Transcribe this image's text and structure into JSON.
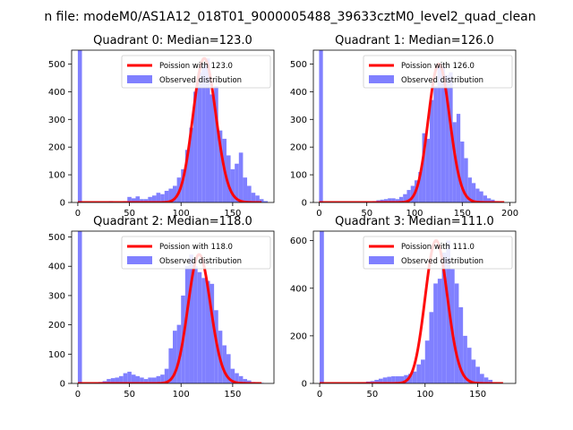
{
  "figure_title": "n file: modeM0/AS1A12_018T01_9000005488_39633cztM0_level2_quad_clean",
  "chart_data": [
    {
      "type": "histogram",
      "title": "Quadrant 0: Median=123.0",
      "xlim": [
        -6,
        190
      ],
      "ylim": [
        0,
        550
      ],
      "xticks": [
        0,
        50,
        100,
        150
      ],
      "yticks": [
        0,
        100,
        200,
        300,
        400,
        500
      ],
      "legend_position": "upper-right",
      "legend": [
        "Poission with 123.0",
        "Observed distribution"
      ],
      "poisson_mean": 123.0,
      "series_color": {
        "poisson": "#ff0000",
        "observed": "#8080ff"
      },
      "hist_x": [
        0,
        4,
        30,
        44,
        48,
        52,
        56,
        60,
        64,
        68,
        72,
        76,
        80,
        84,
        88,
        92,
        96,
        100,
        104,
        108,
        112,
        116,
        120,
        124,
        128,
        132,
        136,
        140,
        144,
        148,
        152,
        156,
        160,
        164,
        168,
        172,
        176,
        180
      ],
      "hist_w": 4,
      "hist_y": [
        550,
        0,
        5,
        5,
        20,
        15,
        22,
        12,
        12,
        20,
        25,
        35,
        30,
        42,
        50,
        60,
        90,
        120,
        190,
        270,
        400,
        470,
        500,
        520,
        390,
        420,
        260,
        230,
        170,
        120,
        140,
        180,
        90,
        60,
        35,
        25,
        12,
        5
      ]
    },
    {
      "type": "histogram",
      "title": "Quadrant 1: Median=126.0",
      "xlim": [
        -6,
        206
      ],
      "ylim": [
        0,
        550
      ],
      "xticks": [
        0,
        50,
        100,
        150,
        200
      ],
      "yticks": [
        0,
        100,
        200,
        300,
        400,
        500
      ],
      "legend_position": "upper-right",
      "legend": [
        "Poission with 126.0",
        "Observed distribution"
      ],
      "poisson_mean": 126.0,
      "series_color": {
        "poisson": "#ff0000",
        "observed": "#8080ff"
      },
      "hist_x": [
        0,
        4,
        48,
        56,
        60,
        64,
        68,
        72,
        76,
        80,
        84,
        88,
        92,
        96,
        100,
        104,
        108,
        112,
        116,
        120,
        124,
        128,
        132,
        136,
        140,
        144,
        148,
        152,
        156,
        160,
        164,
        168,
        172,
        176,
        180,
        184,
        188
      ],
      "hist_w": 4,
      "hist_y": [
        550,
        0,
        3,
        5,
        8,
        10,
        12,
        15,
        15,
        12,
        20,
        30,
        45,
        60,
        80,
        110,
        250,
        230,
        370,
        420,
        500,
        490,
        460,
        470,
        290,
        320,
        220,
        160,
        90,
        70,
        50,
        40,
        25,
        15,
        10,
        5,
        3
      ]
    },
    {
      "type": "histogram",
      "title": "Quadrant 2: Median=118.0",
      "xlim": [
        -6,
        190
      ],
      "ylim": [
        0,
        520
      ],
      "xticks": [
        0,
        50,
        100,
        150
      ],
      "yticks": [
        0,
        100,
        200,
        300,
        400,
        500
      ],
      "legend_position": "upper-right",
      "legend": [
        "Poission with 118.0",
        "Observed distribution"
      ],
      "poisson_mean": 118.0,
      "series_color": {
        "poisson": "#ff0000",
        "observed": "#8080ff"
      },
      "hist_x": [
        0,
        4,
        16,
        20,
        24,
        28,
        32,
        36,
        40,
        44,
        48,
        52,
        56,
        60,
        64,
        68,
        72,
        76,
        80,
        84,
        88,
        92,
        96,
        100,
        104,
        108,
        112,
        116,
        120,
        124,
        128,
        132,
        136,
        140,
        144,
        148,
        152,
        156,
        160,
        164,
        168,
        172,
        176
      ],
      "hist_w": 4,
      "hist_y": [
        520,
        0,
        3,
        5,
        8,
        15,
        18,
        20,
        25,
        35,
        40,
        30,
        25,
        20,
        15,
        20,
        20,
        25,
        30,
        50,
        120,
        180,
        200,
        300,
        400,
        440,
        400,
        380,
        360,
        350,
        340,
        250,
        180,
        130,
        100,
        50,
        35,
        25,
        15,
        10,
        5,
        3,
        2
      ]
    },
    {
      "type": "histogram",
      "title": "Quadrant 3: Median=111.0",
      "xlim": [
        -6,
        186
      ],
      "ylim": [
        0,
        640
      ],
      "xticks": [
        0,
        50,
        100,
        150
      ],
      "yticks": [
        0,
        200,
        400,
        600
      ],
      "legend_position": "upper-right",
      "legend": [
        "Poission with 111.0",
        "Observed distribution"
      ],
      "poisson_mean": 111.0,
      "series_color": {
        "poisson": "#ff0000",
        "observed": "#8080ff"
      },
      "hist_x": [
        0,
        4,
        36,
        40,
        44,
        48,
        52,
        56,
        60,
        64,
        68,
        72,
        76,
        80,
        84,
        88,
        92,
        96,
        100,
        104,
        108,
        112,
        116,
        120,
        124,
        128,
        132,
        136,
        140,
        144,
        148,
        152,
        156,
        160,
        164
      ],
      "hist_w": 4,
      "hist_y": [
        640,
        0,
        3,
        5,
        8,
        10,
        15,
        20,
        25,
        28,
        30,
        30,
        30,
        35,
        40,
        50,
        80,
        100,
        180,
        300,
        420,
        440,
        550,
        600,
        480,
        420,
        320,
        200,
        150,
        100,
        70,
        40,
        25,
        15,
        5
      ]
    }
  ]
}
